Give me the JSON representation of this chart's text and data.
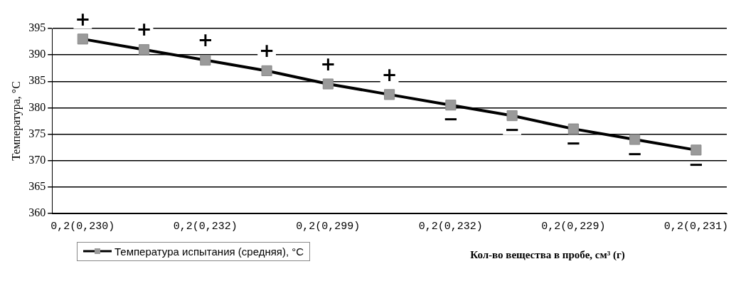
{
  "chart_data": {
    "type": "line",
    "categories": [
      "0,2(0,230)",
      null,
      "0,2(0,232)",
      null,
      "0,2(0,299)",
      null,
      "0,2(0,232)",
      null,
      "0,2(0,229)",
      null,
      "0,2(0,231)"
    ],
    "xlabel": "Кол-во вещества в пробе, см³ (г)",
    "ylabel": "Температура, °С",
    "series": [
      {
        "name": "Температура испытания (средняя), °С",
        "color": "#000000",
        "values": [
          393,
          391,
          389,
          387,
          384.5,
          382.5,
          380.5,
          378.5,
          376,
          374,
          372
        ],
        "value_labels": [
          "+",
          "+",
          "+",
          "+",
          "+",
          "+",
          "−",
          "−",
          "−",
          "−",
          "−"
        ]
      }
    ],
    "ylim": [
      360,
      395
    ],
    "yticks": [
      360,
      365,
      370,
      375,
      380,
      385,
      390,
      395
    ],
    "grid": "y",
    "legend": "bottom left",
    "marker": "square"
  }
}
